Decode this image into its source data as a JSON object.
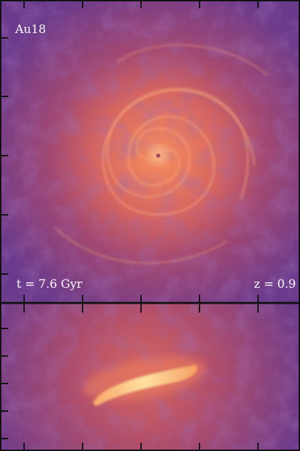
{
  "top_panel": {
    "label": "Au18",
    "time_label": "t = 7.6 Gyr",
    "redshift_label": "z = 0.9"
  }
}
